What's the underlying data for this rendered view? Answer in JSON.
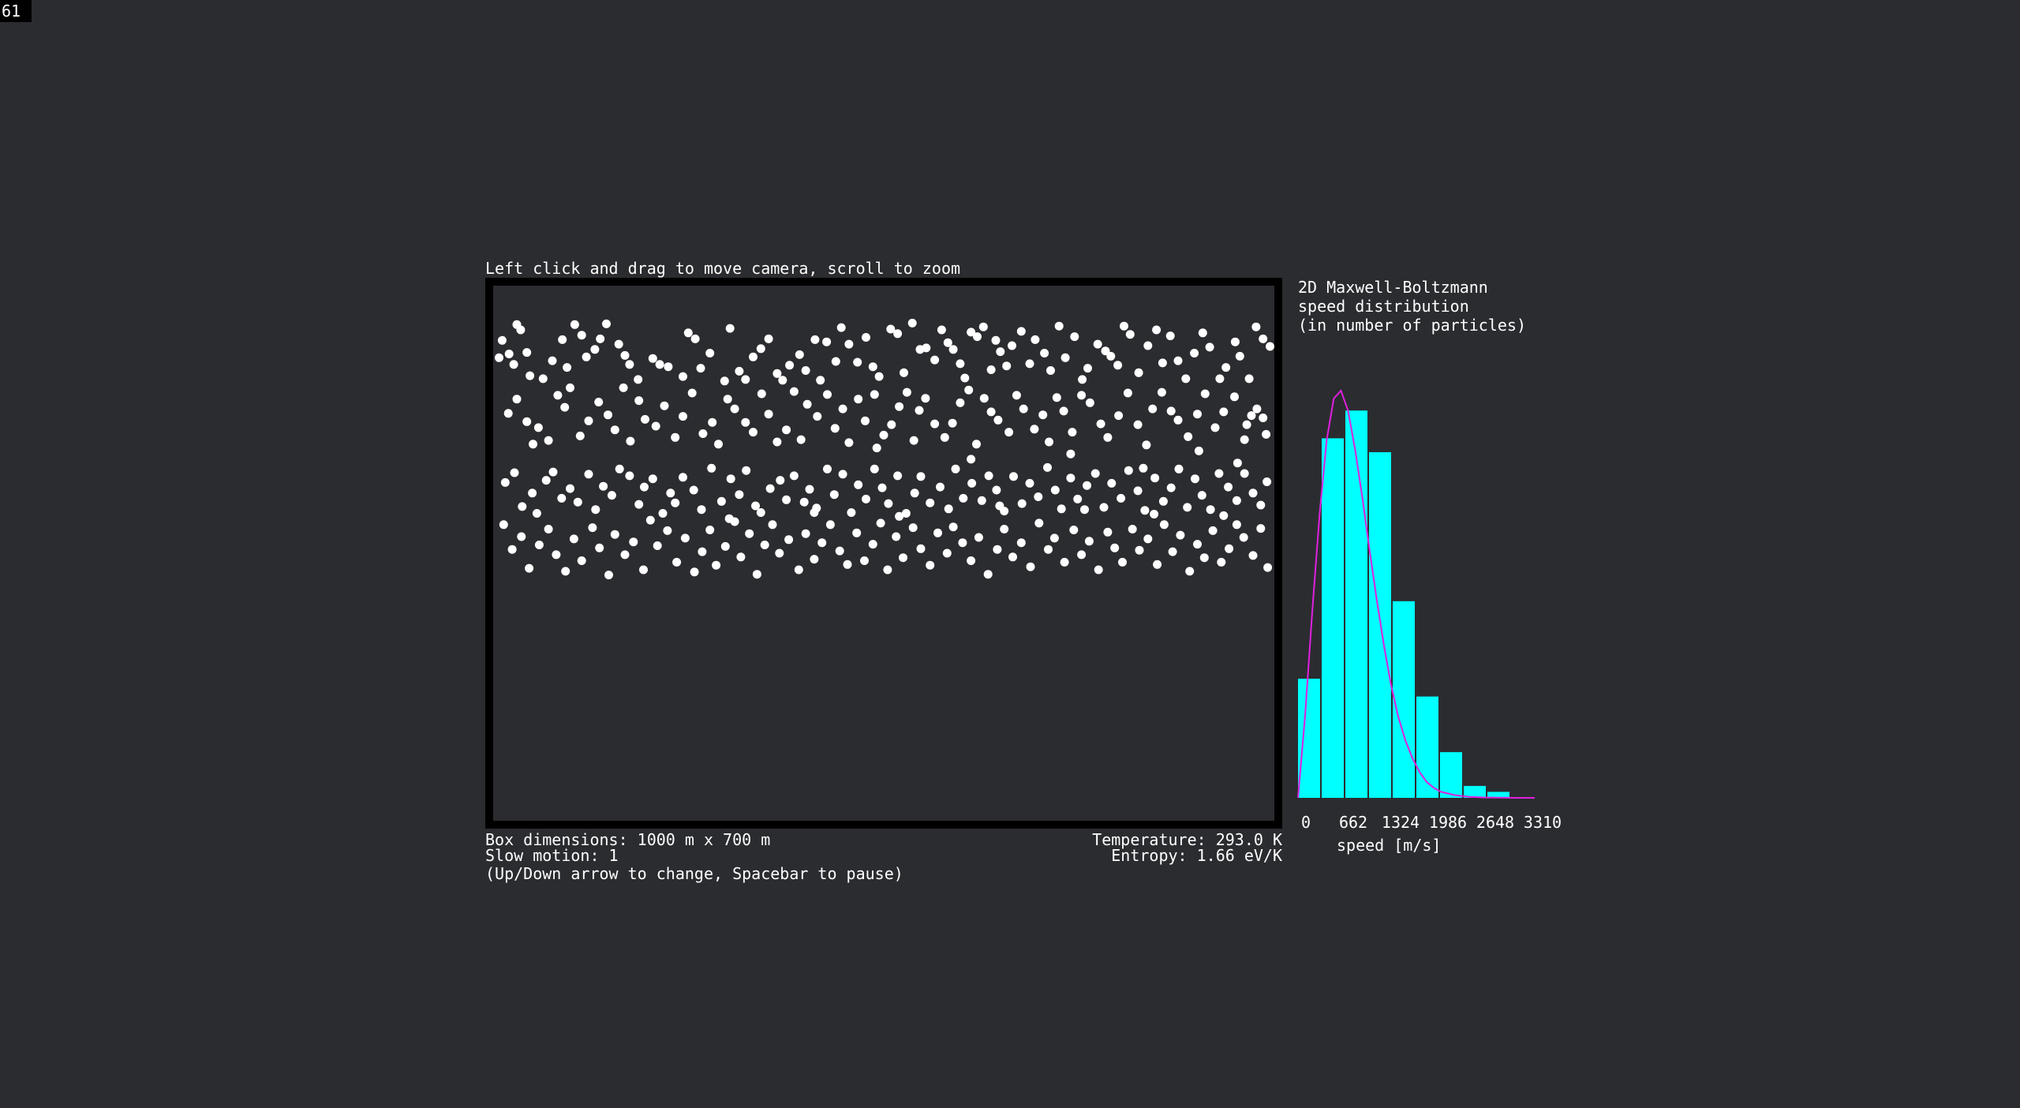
{
  "fps": "61",
  "instructions": "Left click and drag to move camera, scroll to zoom",
  "hist_title": {
    "line1": "2D Maxwell-Boltzmann",
    "line2": "speed distribution",
    "line3": "(in number of particles)"
  },
  "status": {
    "box_dimensions": "Box dimensions: 1000 m x 700 m",
    "slow_motion": "Slow motion: 1",
    "controls_hint": "(Up/Down arrow to change, Spacebar to pause)",
    "temperature": "Temperature: 293.0 K",
    "entropy": "Entropy: 1.66 eV/K"
  },
  "colors": {
    "background": "#2b2c30",
    "particle": "#ffffff",
    "bars": "#00ffff",
    "curve": "#e020e0",
    "box_border": "#000000"
  },
  "chart_data": {
    "type": "bar",
    "xlabel": "speed [m/s]",
    "ylabel": "",
    "x_ticks": [
      "0",
      "662",
      "1324",
      "1986",
      "2648",
      "3310"
    ],
    "bin_width": 331,
    "bin_starts": [
      0,
      331,
      662,
      993,
      1324,
      1655,
      1986,
      2317,
      2648,
      2979
    ],
    "values": [
      60,
      181,
      195,
      174,
      99,
      51,
      23,
      6,
      3,
      0
    ],
    "ylim": [
      0,
      205
    ],
    "series": [
      {
        "values": [
          60,
          181,
          195,
          174,
          99,
          51,
          23,
          6,
          3,
          0
        ]
      }
    ],
    "curve": {
      "x": [
        0,
        100,
        200,
        300,
        400,
        500,
        600,
        700,
        800,
        900,
        1000,
        1100,
        1200,
        1300,
        1400,
        1500,
        1600,
        1700,
        1800,
        1900,
        2000,
        2200,
        2400,
        2600,
        2800,
        3000,
        3310
      ],
      "y": [
        0,
        42,
        94,
        142,
        180,
        201,
        205,
        195,
        175,
        151,
        125,
        100,
        77,
        57,
        41,
        29,
        20,
        13,
        8,
        5,
        3,
        1.3,
        0.5,
        0.2,
        0.1,
        0,
        0
      ]
    }
  },
  "particles": [
    [
      2,
      90
    ],
    [
      6,
      67
    ],
    [
      15,
      85
    ],
    [
      21,
      99
    ],
    [
      25,
      46
    ],
    [
      30,
      53
    ],
    [
      38,
      83
    ],
    [
      42,
      114
    ],
    [
      59,
      118
    ],
    [
      71,
      94
    ],
    [
      84,
      66
    ],
    [
      90,
      103
    ],
    [
      100,
      46
    ],
    [
      109,
      60
    ],
    [
      115,
      89
    ],
    [
      126,
      79
    ],
    [
      133,
      65
    ],
    [
      141,
      45
    ],
    [
      157,
      72
    ],
    [
      165,
      87
    ],
    [
      171,
      99
    ],
    [
      182,
      119
    ],
    [
      201,
      91
    ],
    [
      210,
      99
    ],
    [
      221,
      102
    ],
    [
      240,
      115
    ],
    [
      247,
      57
    ],
    [
      256,
      65
    ],
    [
      263,
      104
    ],
    [
      275,
      84
    ],
    [
      294,
      121
    ],
    [
      301,
      51
    ],
    [
      313,
      108
    ],
    [
      321,
      119
    ],
    [
      331,
      89
    ],
    [
      341,
      78
    ],
    [
      351,
      65
    ],
    [
      362,
      111
    ],
    [
      369,
      120
    ],
    [
      378,
      100
    ],
    [
      391,
      86
    ],
    [
      399,
      107
    ],
    [
      411,
      66
    ],
    [
      418,
      120
    ],
    [
      426,
      69
    ],
    [
      438,
      95
    ],
    [
      445,
      50
    ],
    [
      455,
      72
    ],
    [
      466,
      96
    ],
    [
      477,
      63
    ],
    [
      486,
      102
    ],
    [
      494,
      115
    ],
    [
      509,
      52
    ],
    [
      518,
      58
    ],
    [
      526,
      110
    ],
    [
      537,
      44
    ],
    [
      547,
      79
    ],
    [
      555,
      77
    ],
    [
      566,
      93
    ],
    [
      575,
      53
    ],
    [
      583,
      70
    ],
    [
      590,
      79
    ],
    [
      599,
      98
    ],
    [
      605,
      117
    ],
    [
      613,
      56
    ],
    [
      621,
      62
    ],
    [
      629,
      49
    ],
    [
      639,
      106
    ],
    [
      645,
      67
    ],
    [
      651,
      82
    ],
    [
      659,
      101
    ],
    [
      666,
      74
    ],
    [
      678,
      55
    ],
    [
      689,
      98
    ],
    [
      696,
      66
    ],
    [
      708,
      84
    ],
    [
      716,
      107
    ],
    [
      727,
      48
    ],
    [
      735,
      90
    ],
    [
      747,
      62
    ],
    [
      757,
      119
    ],
    [
      764,
      104
    ],
    [
      777,
      72
    ],
    [
      787,
      81
    ],
    [
      794,
      88
    ],
    [
      803,
      100
    ],
    [
      811,
      48
    ],
    [
      819,
      59
    ],
    [
      830,
      110
    ],
    [
      842,
      74
    ],
    [
      853,
      53
    ],
    [
      861,
      97
    ],
    [
      871,
      61
    ],
    [
      881,
      94
    ],
    [
      891,
      118
    ],
    [
      902,
      84
    ],
    [
      913,
      57
    ],
    [
      922,
      76
    ],
    [
      935,
      118
    ],
    [
      943,
      103
    ],
    [
      955,
      69
    ],
    [
      961,
      88
    ],
    [
      973,
      118
    ],
    [
      982,
      49
    ],
    [
      991,
      65
    ],
    [
      1000,
      75
    ],
    [
      14,
      164
    ],
    [
      25,
      145
    ],
    [
      38,
      175
    ],
    [
      46,
      205
    ],
    [
      53,
      183
    ],
    [
      66,
      200
    ],
    [
      78,
      140
    ],
    [
      87,
      156
    ],
    [
      94,
      130
    ],
    [
      107,
      194
    ],
    [
      118,
      174
    ],
    [
      131,
      149
    ],
    [
      143,
      166
    ],
    [
      152,
      186
    ],
    [
      163,
      130
    ],
    [
      172,
      201
    ],
    [
      183,
      147
    ],
    [
      191,
      172
    ],
    [
      205,
      181
    ],
    [
      216,
      154
    ],
    [
      230,
      196
    ],
    [
      240,
      168
    ],
    [
      252,
      137
    ],
    [
      266,
      191
    ],
    [
      278,
      176
    ],
    [
      286,
      205
    ],
    [
      298,
      145
    ],
    [
      307,
      158
    ],
    [
      321,
      176
    ],
    [
      331,
      189
    ],
    [
      342,
      138
    ],
    [
      351,
      165
    ],
    [
      362,
      202
    ],
    [
      374,
      186
    ],
    [
      384,
      135
    ],
    [
      393,
      199
    ],
    [
      401,
      152
    ],
    [
      414,
      168
    ],
    [
      427,
      139
    ],
    [
      437,
      184
    ],
    [
      447,
      158
    ],
    [
      455,
      203
    ],
    [
      467,
      145
    ],
    [
      476,
      174
    ],
    [
      488,
      139
    ],
    [
      500,
      193
    ],
    [
      510,
      179
    ],
    [
      520,
      155
    ],
    [
      530,
      136
    ],
    [
      539,
      200
    ],
    [
      546,
      160
    ],
    [
      554,
      144
    ],
    [
      566,
      178
    ],
    [
      579,
      196
    ],
    [
      589,
      177
    ],
    [
      599,
      150
    ],
    [
      610,
      133
    ],
    [
      620,
      205
    ],
    [
      630,
      144
    ],
    [
      639,
      162
    ],
    [
      648,
      173
    ],
    [
      662,
      189
    ],
    [
      672,
      140
    ],
    [
      681,
      158
    ],
    [
      695,
      185
    ],
    [
      706,
      166
    ],
    [
      714,
      202
    ],
    [
      724,
      143
    ],
    [
      733,
      161
    ],
    [
      744,
      189
    ],
    [
      756,
      140
    ],
    [
      767,
      150
    ],
    [
      781,
      178
    ],
    [
      790,
      196
    ],
    [
      804,
      167
    ],
    [
      816,
      137
    ],
    [
      829,
      179
    ],
    [
      840,
      206
    ],
    [
      848,
      158
    ],
    [
      860,
      136
    ],
    [
      872,
      161
    ],
    [
      881,
      173
    ],
    [
      894,
      195
    ],
    [
      906,
      165
    ],
    [
      916,
      138
    ],
    [
      929,
      183
    ],
    [
      940,
      162
    ],
    [
      954,
      142
    ],
    [
      967,
      199
    ],
    [
      976,
      167
    ],
    [
      983,
      158
    ],
    [
      995,
      192
    ],
    [
      991,
      170
    ],
    [
      970,
      179
    ],
    [
      10,
      256
    ],
    [
      22,
      243
    ],
    [
      32,
      288
    ],
    [
      45,
      270
    ],
    [
      51,
      297
    ],
    [
      63,
      253
    ],
    [
      72,
      242
    ],
    [
      83,
      277
    ],
    [
      94,
      264
    ],
    [
      104,
      282
    ],
    [
      118,
      245
    ],
    [
      127,
      292
    ],
    [
      137,
      261
    ],
    [
      148,
      273
    ],
    [
      158,
      238
    ],
    [
      171,
      247
    ],
    [
      183,
      285
    ],
    [
      190,
      262
    ],
    [
      201,
      251
    ],
    [
      214,
      297
    ],
    [
      224,
      270
    ],
    [
      230,
      283
    ],
    [
      240,
      249
    ],
    [
      254,
      266
    ],
    [
      264,
      292
    ],
    [
      277,
      237
    ],
    [
      290,
      281
    ],
    [
      302,
      251
    ],
    [
      313,
      272
    ],
    [
      322,
      240
    ],
    [
      334,
      287
    ],
    [
      341,
      296
    ],
    [
      353,
      264
    ],
    [
      366,
      253
    ],
    [
      374,
      279
    ],
    [
      384,
      247
    ],
    [
      397,
      282
    ],
    [
      404,
      265
    ],
    [
      413,
      290
    ],
    [
      427,
      238
    ],
    [
      436,
      272
    ],
    [
      447,
      245
    ],
    [
      458,
      296
    ],
    [
      467,
      259
    ],
    [
      477,
      278
    ],
    [
      488,
      238
    ],
    [
      498,
      263
    ],
    [
      506,
      284
    ],
    [
      518,
      247
    ],
    [
      529,
      297
    ],
    [
      540,
      270
    ],
    [
      548,
      248
    ],
    [
      560,
      283
    ],
    [
      573,
      262
    ],
    [
      584,
      291
    ],
    [
      593,
      238
    ],
    [
      603,
      277
    ],
    [
      614,
      257
    ],
    [
      627,
      280
    ],
    [
      636,
      247
    ],
    [
      646,
      266
    ],
    [
      656,
      294
    ],
    [
      668,
      248
    ],
    [
      679,
      284
    ],
    [
      689,
      257
    ],
    [
      700,
      275
    ],
    [
      712,
      236
    ],
    [
      722,
      266
    ],
    [
      730,
      291
    ],
    [
      742,
      250
    ],
    [
      751,
      278
    ],
    [
      763,
      260
    ],
    [
      774,
      244
    ],
    [
      785,
      289
    ],
    [
      795,
      257
    ],
    [
      807,
      277
    ],
    [
      817,
      240
    ],
    [
      829,
      267
    ],
    [
      838,
      293
    ],
    [
      851,
      250
    ],
    [
      862,
      281
    ],
    [
      872,
      263
    ],
    [
      882,
      238
    ],
    [
      893,
      289
    ],
    [
      903,
      251
    ],
    [
      912,
      273
    ],
    [
      923,
      292
    ],
    [
      934,
      244
    ],
    [
      946,
      262
    ],
    [
      957,
      280
    ],
    [
      967,
      244
    ],
    [
      978,
      270
    ],
    [
      988,
      286
    ],
    [
      996,
      255
    ],
    [
      958,
      230
    ],
    [
      908,
      214
    ],
    [
      836,
      237
    ],
    [
      742,
      218
    ],
    [
      613,
      225
    ],
    [
      491,
      210
    ],
    [
      8,
      312
    ],
    [
      19,
      345
    ],
    [
      31,
      328
    ],
    [
      41,
      370
    ],
    [
      54,
      339
    ],
    [
      66,
      318
    ],
    [
      76,
      352
    ],
    [
      88,
      374
    ],
    [
      99,
      331
    ],
    [
      109,
      360
    ],
    [
      123,
      316
    ],
    [
      132,
      343
    ],
    [
      144,
      379
    ],
    [
      152,
      325
    ],
    [
      165,
      352
    ],
    [
      176,
      335
    ],
    [
      189,
      372
    ],
    [
      198,
      306
    ],
    [
      207,
      340
    ],
    [
      220,
      320
    ],
    [
      232,
      362
    ],
    [
      243,
      330
    ],
    [
      255,
      375
    ],
    [
      265,
      348
    ],
    [
      275,
      319
    ],
    [
      283,
      366
    ],
    [
      295,
      341
    ],
    [
      307,
      308
    ],
    [
      315,
      355
    ],
    [
      326,
      324
    ],
    [
      336,
      378
    ],
    [
      346,
      339
    ],
    [
      356,
      312
    ],
    [
      365,
      350
    ],
    [
      377,
      332
    ],
    [
      390,
      372
    ],
    [
      399,
      324
    ],
    [
      410,
      358
    ],
    [
      420,
      336
    ],
    [
      431,
      312
    ],
    [
      443,
      347
    ],
    [
      453,
      365
    ],
    [
      465,
      323
    ],
    [
      475,
      360
    ],
    [
      486,
      338
    ],
    [
      496,
      310
    ],
    [
      505,
      372
    ],
    [
      516,
      328
    ],
    [
      525,
      356
    ],
    [
      538,
      316
    ],
    [
      548,
      344
    ],
    [
      560,
      366
    ],
    [
      570,
      323
    ],
    [
      582,
      350
    ],
    [
      590,
      315
    ],
    [
      602,
      336
    ],
    [
      613,
      360
    ],
    [
      623,
      329
    ],
    [
      635,
      378
    ],
    [
      647,
      345
    ],
    [
      656,
      318
    ],
    [
      667,
      355
    ],
    [
      678,
      336
    ],
    [
      690,
      368
    ],
    [
      701,
      310
    ],
    [
      713,
      345
    ],
    [
      721,
      330
    ],
    [
      734,
      362
    ],
    [
      746,
      319
    ],
    [
      756,
      352
    ],
    [
      766,
      334
    ],
    [
      778,
      372
    ],
    [
      790,
      322
    ],
    [
      799,
      343
    ],
    [
      809,
      362
    ],
    [
      822,
      318
    ],
    [
      831,
      346
    ],
    [
      842,
      331
    ],
    [
      854,
      365
    ],
    [
      863,
      312
    ],
    [
      874,
      348
    ],
    [
      884,
      326
    ],
    [
      896,
      374
    ],
    [
      906,
      338
    ],
    [
      915,
      356
    ],
    [
      926,
      320
    ],
    [
      937,
      362
    ],
    [
      947,
      344
    ],
    [
      957,
      312
    ],
    [
      966,
      329
    ],
    [
      978,
      353
    ],
    [
      988,
      317
    ],
    [
      997,
      369
    ],
    [
      940,
      300
    ],
    [
      850,
      298
    ],
    [
      760,
      292
    ],
    [
      650,
      287
    ],
    [
      520,
      301
    ],
    [
      410,
      296
    ],
    [
      300,
      304
    ]
  ]
}
